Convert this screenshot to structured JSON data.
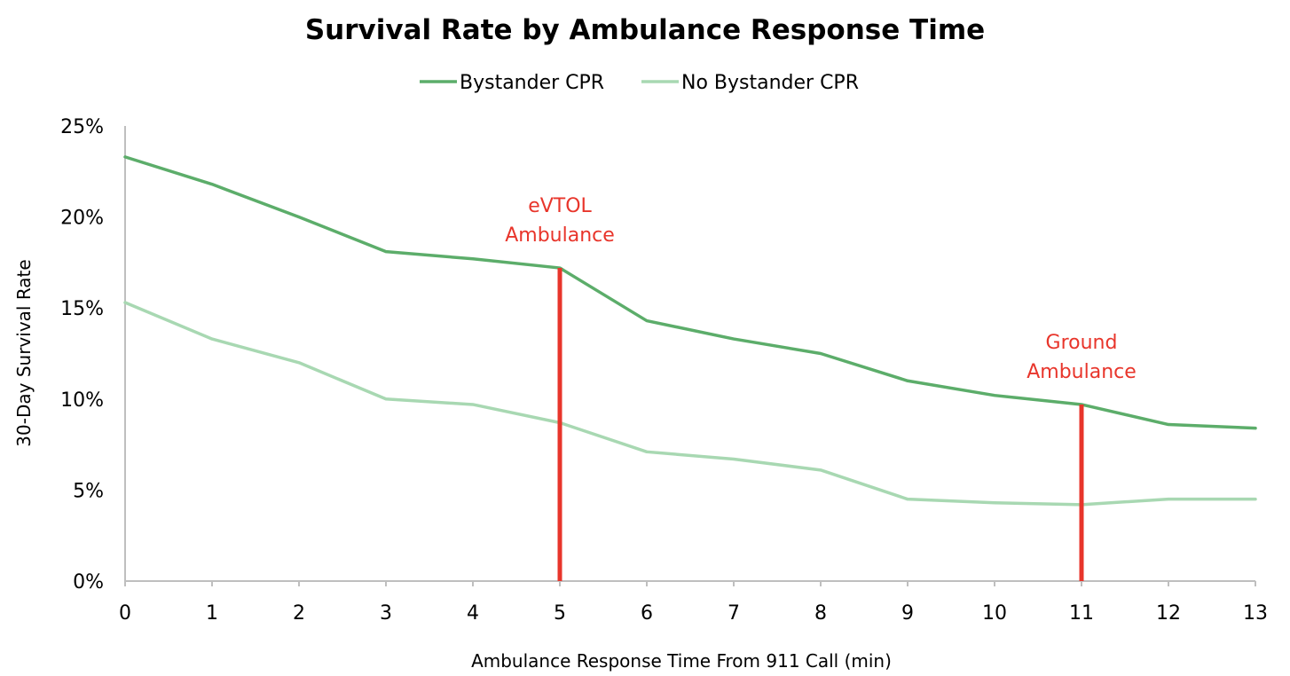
{
  "chart_data": {
    "type": "line",
    "title": "Survival Rate by Ambulance Response Time",
    "xlabel": "Ambulance Response Time From 911 Call (min)",
    "ylabel": "30-Day Survival Rate",
    "x": [
      0,
      1,
      2,
      3,
      4,
      5,
      6,
      7,
      8,
      9,
      10,
      11,
      12,
      13
    ],
    "xlim": [
      0,
      13
    ],
    "ylim": [
      0,
      25
    ],
    "y_ticks": [
      0,
      5,
      10,
      15,
      20,
      25
    ],
    "y_tick_labels": [
      "0%",
      "5%",
      "10%",
      "15%",
      "20%",
      "25%"
    ],
    "x_tick_labels": [
      "0",
      "1",
      "2",
      "3",
      "4",
      "5",
      "6",
      "7",
      "8",
      "9",
      "10",
      "11",
      "12",
      "13"
    ],
    "grid": false,
    "legend_position": "top-center",
    "series": [
      {
        "name": "Bystander CPR",
        "color": "#5cad6a",
        "values": [
          23.3,
          21.8,
          20.0,
          18.1,
          17.7,
          17.2,
          14.3,
          13.3,
          12.5,
          11.0,
          10.2,
          9.7,
          8.6,
          8.4
        ]
      },
      {
        "name": "No Bystander CPR",
        "color": "#a8d8b2",
        "values": [
          15.3,
          13.3,
          12.0,
          10.0,
          9.7,
          8.7,
          7.1,
          6.7,
          6.1,
          4.5,
          4.3,
          4.2,
          4.5,
          4.5
        ]
      }
    ],
    "annotations": [
      {
        "label_lines": [
          "eVTOL",
          "Ambulance"
        ],
        "x": 5,
        "y_top": 17.2,
        "color": "#e8352b"
      },
      {
        "label_lines": [
          "Ground",
          "Ambulance"
        ],
        "x": 11,
        "y_top": 9.7,
        "color": "#e8352b"
      }
    ],
    "axis_color": "#bfbfbf"
  }
}
